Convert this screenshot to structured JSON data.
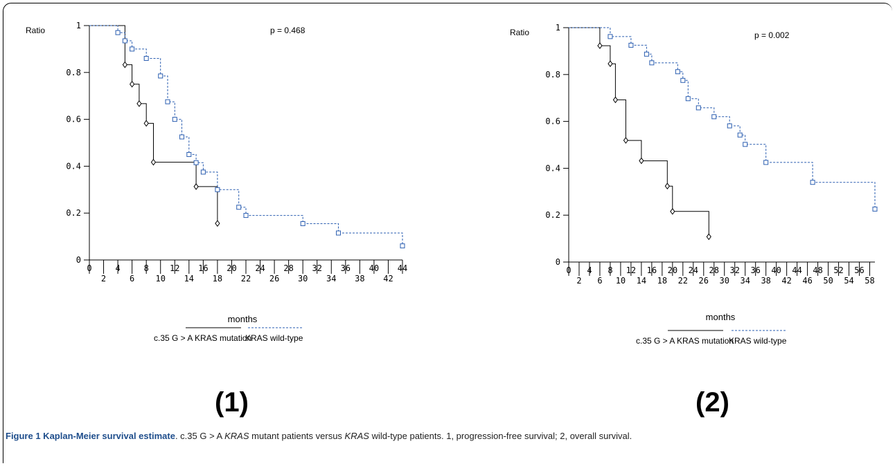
{
  "chart_data": [
    {
      "type": "line",
      "subtype": "kaplan-meier step",
      "panel_label": "(1)",
      "ylabel": "Ratio",
      "xlabel": "months",
      "p_value_text": "p = 0.468",
      "xlim": [
        0,
        44
      ],
      "ylim": [
        0,
        1
      ],
      "y_ticks": [
        "0",
        "0.2",
        "0.4",
        "0.6",
        "0.8",
        "1"
      ],
      "y_tick_values": [
        0,
        0.2,
        0.4,
        0.6,
        0.8,
        1
      ],
      "x_ticks_top": [
        "0",
        "4",
        "8",
        "12",
        "16",
        "20",
        "24",
        "28",
        "32",
        "36",
        "40",
        "44"
      ],
      "x_ticks_bottom": [
        "2",
        "6",
        "10",
        "14",
        "18",
        "22",
        "26",
        "30",
        "34",
        "38",
        "42"
      ],
      "series": [
        {
          "name": "c.35 G > A KRAS mutation",
          "color": "#000000",
          "dash": "solid",
          "marker": "diamond",
          "points": [
            [
              0,
              1
            ],
            [
              5,
              1
            ],
            [
              5,
              0.833
            ],
            [
              6,
              0.833
            ],
            [
              6,
              0.75
            ],
            [
              7,
              0.75
            ],
            [
              7,
              0.667
            ],
            [
              8,
              0.667
            ],
            [
              8,
              0.583
            ],
            [
              9,
              0.583
            ],
            [
              9,
              0.417
            ],
            [
              15,
              0.417
            ],
            [
              15,
              0.313
            ],
            [
              18,
              0.313
            ],
            [
              18,
              0.156
            ]
          ],
          "markers": [
            [
              5,
              0.833
            ],
            [
              6,
              0.75
            ],
            [
              7,
              0.667
            ],
            [
              8,
              0.583
            ],
            [
              9,
              0.417
            ],
            [
              15,
              0.313
            ],
            [
              18,
              0.156
            ]
          ]
        },
        {
          "name": "KRAS wild-type",
          "color": "#2a5db0",
          "dash": "dashed",
          "marker": "square",
          "points": [
            [
              0,
              1
            ],
            [
              4,
              1
            ],
            [
              4,
              0.97
            ],
            [
              5,
              0.97
            ],
            [
              5,
              0.935
            ],
            [
              6,
              0.935
            ],
            [
              6,
              0.9
            ],
            [
              8,
              0.9
            ],
            [
              8,
              0.86
            ],
            [
              10,
              0.86
            ],
            [
              10,
              0.785
            ],
            [
              11,
              0.785
            ],
            [
              11,
              0.675
            ],
            [
              12,
              0.675
            ],
            [
              12,
              0.6
            ],
            [
              13,
              0.6
            ],
            [
              13,
              0.525
            ],
            [
              14,
              0.525
            ],
            [
              14,
              0.45
            ],
            [
              15,
              0.45
            ],
            [
              15,
              0.415
            ],
            [
              16,
              0.415
            ],
            [
              16,
              0.375
            ],
            [
              18,
              0.375
            ],
            [
              18,
              0.3
            ],
            [
              21,
              0.3
            ],
            [
              21,
              0.225
            ],
            [
              22,
              0.225
            ],
            [
              22,
              0.19
            ],
            [
              30,
              0.19
            ],
            [
              30,
              0.155
            ],
            [
              35,
              0.155
            ],
            [
              35,
              0.115
            ],
            [
              44,
              0.115
            ],
            [
              44,
              0.06
            ]
          ],
          "markers": [
            [
              4,
              0.97
            ],
            [
              5,
              0.935
            ],
            [
              6,
              0.9
            ],
            [
              8,
              0.86
            ],
            [
              10,
              0.785
            ],
            [
              11,
              0.675
            ],
            [
              12,
              0.6
            ],
            [
              13,
              0.525
            ],
            [
              14,
              0.45
            ],
            [
              15,
              0.415
            ],
            [
              16,
              0.375
            ],
            [
              18,
              0.3
            ],
            [
              21,
              0.225
            ],
            [
              22,
              0.19
            ],
            [
              30,
              0.155
            ],
            [
              35,
              0.115
            ],
            [
              44,
              0.06
            ]
          ]
        }
      ]
    },
    {
      "type": "line",
      "subtype": "kaplan-meier step",
      "panel_label": "(2)",
      "ylabel": "Ratio",
      "xlabel": "months",
      "p_value_text": "p = 0.002",
      "xlim": [
        0,
        59
      ],
      "ylim": [
        0,
        1
      ],
      "y_ticks": [
        "0",
        "0.2",
        "0.4",
        "0.6",
        "0.8",
        "1"
      ],
      "y_tick_values": [
        0,
        0.2,
        0.4,
        0.6,
        0.8,
        1
      ],
      "x_ticks_top": [
        "0",
        "4",
        "8",
        "12",
        "16",
        "20",
        "24",
        "28",
        "32",
        "36",
        "40",
        "44",
        "48",
        "52",
        "56"
      ],
      "x_ticks_bottom": [
        "2",
        "6",
        "10",
        "14",
        "18",
        "22",
        "26",
        "30",
        "34",
        "38",
        "42",
        "46",
        "50",
        "54",
        "58"
      ],
      "series": [
        {
          "name": "c.35 G > A KRAS mutation",
          "color": "#000000",
          "dash": "solid",
          "marker": "diamond",
          "points": [
            [
              0,
              1
            ],
            [
              6,
              1
            ],
            [
              6,
              0.923
            ],
            [
              8,
              0.923
            ],
            [
              8,
              0.846
            ],
            [
              9,
              0.846
            ],
            [
              9,
              0.692
            ],
            [
              11,
              0.692
            ],
            [
              11,
              0.519
            ],
            [
              14,
              0.519
            ],
            [
              14,
              0.432
            ],
            [
              19,
              0.432
            ],
            [
              19,
              0.324
            ],
            [
              20,
              0.324
            ],
            [
              20,
              0.216
            ],
            [
              27,
              0.216
            ],
            [
              27,
              0.108
            ]
          ],
          "markers": [
            [
              6,
              0.923
            ],
            [
              8,
              0.846
            ],
            [
              9,
              0.692
            ],
            [
              11,
              0.519
            ],
            [
              14,
              0.432
            ],
            [
              19,
              0.324
            ],
            [
              20,
              0.216
            ],
            [
              27,
              0.108
            ]
          ]
        },
        {
          "name": "KRAS wild-type",
          "color": "#2a5db0",
          "dash": "dashed",
          "marker": "square",
          "points": [
            [
              0,
              1
            ],
            [
              8,
              1
            ],
            [
              8,
              0.962
            ],
            [
              12,
              0.962
            ],
            [
              12,
              0.925
            ],
            [
              15,
              0.925
            ],
            [
              15,
              0.887
            ],
            [
              16,
              0.887
            ],
            [
              16,
              0.85
            ],
            [
              21,
              0.85
            ],
            [
              21,
              0.812
            ],
            [
              22,
              0.812
            ],
            [
              22,
              0.775
            ],
            [
              23,
              0.775
            ],
            [
              23,
              0.697
            ],
            [
              25,
              0.697
            ],
            [
              25,
              0.658
            ],
            [
              28,
              0.658
            ],
            [
              28,
              0.62
            ],
            [
              31,
              0.62
            ],
            [
              31,
              0.581
            ],
            [
              33,
              0.581
            ],
            [
              33,
              0.542
            ],
            [
              34,
              0.542
            ],
            [
              34,
              0.502
            ],
            [
              38,
              0.502
            ],
            [
              38,
              0.425
            ],
            [
              47,
              0.425
            ],
            [
              47,
              0.34
            ],
            [
              59,
              0.34
            ],
            [
              59,
              0.226
            ]
          ],
          "markers": [
            [
              8,
              0.962
            ],
            [
              12,
              0.925
            ],
            [
              15,
              0.887
            ],
            [
              16,
              0.85
            ],
            [
              21,
              0.812
            ],
            [
              22,
              0.775
            ],
            [
              23,
              0.697
            ],
            [
              25,
              0.658
            ],
            [
              28,
              0.62
            ],
            [
              31,
              0.581
            ],
            [
              33,
              0.542
            ],
            [
              34,
              0.502
            ],
            [
              38,
              0.425
            ],
            [
              47,
              0.34
            ],
            [
              59,
              0.226
            ]
          ]
        }
      ]
    }
  ],
  "caption": {
    "figure_title": "Figure 1 Kaplan-Meier survival estimate",
    "part1": ". c.35 G > A ",
    "kras1": "KRAS",
    "part2": " mutant patients versus ",
    "kras2": "KRAS",
    "part3": " wild-type patients. 1, progression-free survival; 2, overall survival."
  }
}
